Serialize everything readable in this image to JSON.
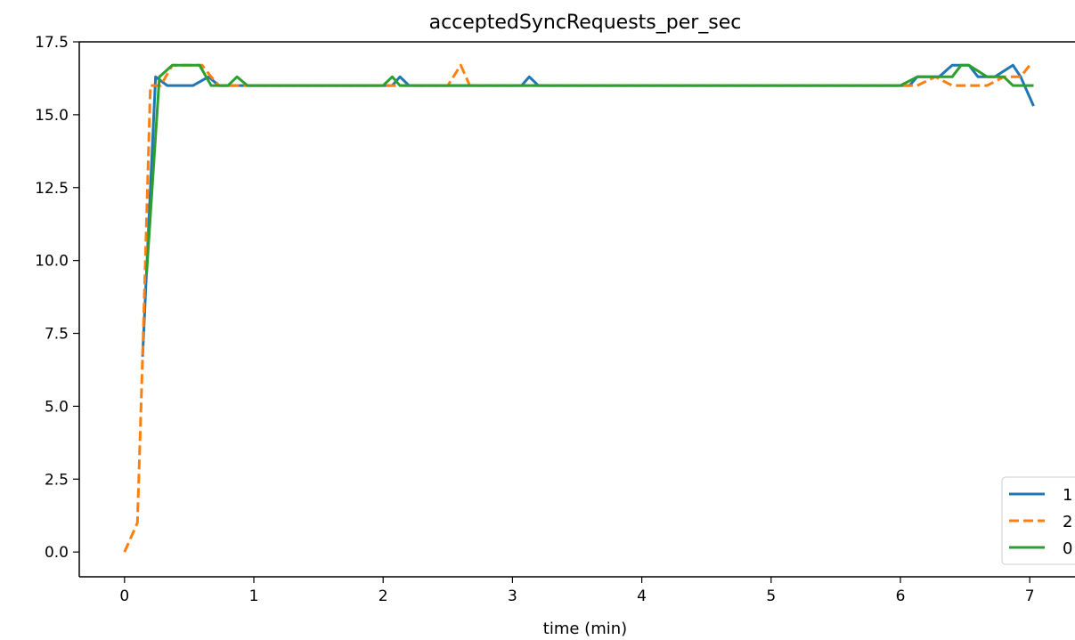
{
  "chart_data": {
    "type": "line",
    "title": "acceptedSyncRequests_per_sec",
    "xlabel": "time (min)",
    "ylabel": "",
    "xlim": [
      -0.35,
      7.35
    ],
    "ylim": [
      -0.85,
      17.5
    ],
    "x_ticks": [
      0,
      1,
      2,
      3,
      4,
      5,
      6,
      7
    ],
    "y_ticks": [
      0,
      2.5,
      5,
      7.5,
      10,
      12.5,
      15,
      17.5
    ],
    "x_tick_labels": [
      "0",
      "1",
      "2",
      "3",
      "4",
      "5",
      "6",
      "7"
    ],
    "y_tick_labels": [
      "0.0",
      "2.5",
      "5.0",
      "7.5",
      "10.0",
      "12.5",
      "15.0",
      "17.5"
    ],
    "grid": false,
    "legend_position": "bottom-right",
    "series": [
      {
        "name": "1",
        "color": "#1f77b4",
        "style": "solid",
        "x": [
          0.14,
          0.24,
          0.33,
          0.42,
          0.53,
          0.65,
          0.73,
          0.87,
          1.0,
          1.5,
          2.0,
          2.07,
          2.13,
          2.2,
          2.3,
          3.0,
          3.07,
          3.13,
          3.2,
          3.3,
          4.0,
          5.0,
          6.0,
          6.07,
          6.13,
          6.3,
          6.4,
          6.47,
          6.53,
          6.6,
          6.73,
          6.87,
          6.93,
          7.03
        ],
        "y": [
          6.7,
          16.3,
          16.0,
          16.0,
          16.0,
          16.3,
          16.0,
          16.0,
          16.0,
          16.0,
          16.0,
          16.0,
          16.3,
          16.0,
          16.0,
          16.0,
          16.0,
          16.3,
          16.0,
          16.0,
          16.0,
          16.0,
          16.0,
          16.0,
          16.3,
          16.3,
          16.7,
          16.7,
          16.7,
          16.3,
          16.3,
          16.7,
          16.3,
          15.3
        ]
      },
      {
        "name": "2",
        "color": "#ff7f0e",
        "style": "dashed",
        "x": [
          0.0,
          0.1,
          0.14,
          0.2,
          0.28,
          0.37,
          0.45,
          0.6,
          0.67,
          0.73,
          0.87,
          1.0,
          2.0,
          2.1,
          2.2,
          2.5,
          2.6,
          2.67,
          2.73,
          3.0,
          4.0,
          5.0,
          6.0,
          6.13,
          6.27,
          6.4,
          6.53,
          6.67,
          6.8,
          6.93,
          7.0
        ],
        "y": [
          0.0,
          1.0,
          6.7,
          16.0,
          16.0,
          16.7,
          16.7,
          16.7,
          16.3,
          16.0,
          16.0,
          16.0,
          16.0,
          16.0,
          16.0,
          16.0,
          16.7,
          16.0,
          16.0,
          16.0,
          16.0,
          16.0,
          16.0,
          16.0,
          16.3,
          16.0,
          16.0,
          16.0,
          16.3,
          16.3,
          16.7
        ]
      },
      {
        "name": "0",
        "color": "#2ca02c",
        "style": "solid",
        "x": [
          0.17,
          0.27,
          0.37,
          0.45,
          0.58,
          0.67,
          0.8,
          0.87,
          0.95,
          1.1,
          2.0,
          2.07,
          2.13,
          3.0,
          4.0,
          5.0,
          6.0,
          6.13,
          6.27,
          6.4,
          6.47,
          6.53,
          6.67,
          6.8,
          6.87,
          7.03
        ],
        "y": [
          9.5,
          16.3,
          16.7,
          16.7,
          16.7,
          16.0,
          16.0,
          16.3,
          16.0,
          16.0,
          16.0,
          16.3,
          16.0,
          16.0,
          16.0,
          16.0,
          16.0,
          16.3,
          16.3,
          16.3,
          16.7,
          16.7,
          16.3,
          16.3,
          16.0,
          16.0
        ]
      }
    ]
  }
}
